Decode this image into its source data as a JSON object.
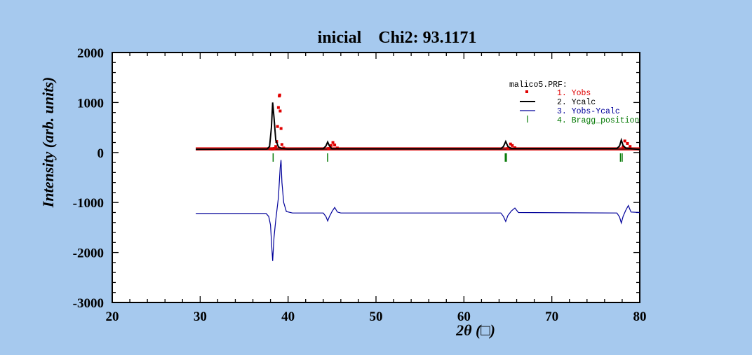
{
  "chart_data": {
    "type": "line",
    "title": "inicial    Chi2: 93.1171",
    "xlabel": "2θ (□)",
    "ylabel": "Intensity (arb. units)",
    "xlim": [
      20,
      80
    ],
    "ylim": [
      -3000,
      2000
    ],
    "x_ticks": [
      "20",
      "30",
      "40",
      "50",
      "60",
      "70",
      "80"
    ],
    "y_ticks": [
      "2000",
      "1000",
      "0",
      "-1000",
      "-2000",
      "-3000"
    ],
    "legend_position": "top-right",
    "legend_title": "malico5.PRF:",
    "colors": {
      "background": "#a6c9ee",
      "plot_bg": "#ffffff",
      "yobs": "#e00000",
      "ycalc": "#000000",
      "diff": "#00009a",
      "bragg": "#007700"
    },
    "series": [
      {
        "name": "1. Yobs",
        "style": "points",
        "x": [
          38.0,
          38.2,
          38.4,
          38.6,
          38.7,
          38.8,
          38.9,
          39.0,
          39.05,
          39.1,
          39.2,
          39.3,
          39.5,
          44.6,
          44.9,
          45.1,
          45.3,
          45.6,
          65.0,
          65.3,
          65.5,
          65.8,
          78.1,
          78.3,
          78.6,
          78.9
        ],
        "y": [
          75,
          70,
          80,
          120,
          220,
          520,
          900,
          1130,
          1150,
          830,
          480,
          160,
          90,
          80,
          140,
          200,
          150,
          90,
          80,
          170,
          140,
          95,
          110,
          230,
          180,
          120
        ]
      },
      {
        "name": "2. Ycalc",
        "style": "line",
        "x": [
          29.5,
          37.6,
          37.9,
          38.1,
          38.25,
          38.4,
          38.6,
          38.9,
          39.3,
          40.0,
          44.0,
          44.3,
          44.5,
          44.7,
          45.0,
          64.2,
          64.5,
          64.75,
          65.0,
          65.4,
          77.4,
          77.7,
          77.9,
          78.1,
          78.4,
          80.0
        ],
        "y": [
          65,
          70,
          120,
          500,
          1000,
          700,
          250,
          110,
          80,
          70,
          75,
          130,
          210,
          130,
          75,
          75,
          120,
          220,
          120,
          80,
          80,
          130,
          250,
          140,
          90,
          60
        ]
      },
      {
        "name": "3. Yobs-Ycalc",
        "style": "line",
        "x": [
          29.5,
          37.5,
          37.8,
          38.0,
          38.15,
          38.25,
          38.4,
          38.6,
          38.9,
          39.1,
          39.2,
          39.3,
          39.5,
          39.8,
          40.5,
          44.0,
          44.3,
          44.5,
          44.7,
          45.0,
          45.3,
          45.6,
          46.0,
          64.2,
          64.5,
          64.75,
          65.0,
          65.4,
          65.8,
          66.2,
          77.4,
          77.7,
          77.9,
          78.1,
          78.4,
          78.7,
          79.0,
          80.0
        ],
        "y": [
          -1220,
          -1220,
          -1280,
          -1450,
          -1900,
          -2170,
          -1700,
          -1350,
          -900,
          -300,
          -150,
          -600,
          -1000,
          -1180,
          -1210,
          -1210,
          -1280,
          -1370,
          -1280,
          -1180,
          -1100,
          -1190,
          -1210,
          -1210,
          -1280,
          -1380,
          -1260,
          -1170,
          -1110,
          -1200,
          -1210,
          -1290,
          -1410,
          -1280,
          -1160,
          -1060,
          -1190,
          -1200
        ]
      },
      {
        "name": "4. Bragg_position",
        "style": "ticks",
        "x": [
          38.3,
          44.5,
          64.7,
          64.85,
          77.8,
          78.0
        ],
        "y_level": -100
      }
    ]
  }
}
